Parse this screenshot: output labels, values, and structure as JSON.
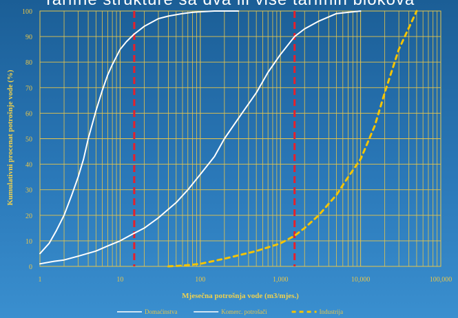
{
  "page_title": "Tarifne strukture sa dva ili više tarifnih blokova",
  "chart_data": {
    "type": "line",
    "title": "Tarifne strukture sa dva ili više tarifnih blokova",
    "xlabel": "Mjesečna potrošnja vode (m3/mjes.)",
    "ylabel": "Kumulativni procenat potrošnje vode (%)",
    "x_scale": "log",
    "xlim": [
      1,
      100000
    ],
    "ylim": [
      0,
      100
    ],
    "x_ticks": [
      1,
      10,
      100,
      1000,
      10000,
      100000
    ],
    "x_tick_labels": [
      "1",
      "10",
      "100",
      "1,000",
      "10,000",
      "100,000"
    ],
    "y_ticks": [
      0,
      10,
      20,
      30,
      40,
      50,
      60,
      70,
      80,
      90,
      100
    ],
    "grid": true,
    "legend_position": "bottom",
    "reference_lines_x": [
      15,
      1500
    ],
    "reference_line_color": "#e8202a",
    "series": [
      {
        "name": "Domaćinstva",
        "color": "#ffffff",
        "style": "solid",
        "x": [
          1,
          1.3,
          1.6,
          2,
          2.5,
          3,
          3.5,
          4,
          5,
          6,
          7,
          8,
          10,
          12,
          15,
          20,
          30,
          40,
          60,
          80,
          100,
          150,
          200,
          300
        ],
        "y": [
          5,
          9,
          14,
          20,
          28,
          35,
          42,
          50,
          61,
          69,
          75,
          79,
          85,
          88,
          91,
          94,
          97,
          98,
          99,
          99.5,
          99.7,
          100,
          100,
          100
        ]
      },
      {
        "name": "Komerc. potrošači",
        "color": "#ffffff",
        "style": "solid",
        "x": [
          1,
          1.5,
          2,
          3,
          5,
          7,
          10,
          15,
          20,
          30,
          50,
          70,
          100,
          150,
          200,
          300,
          500,
          700,
          1000,
          1500,
          2000,
          3000,
          5000,
          7000,
          10000
        ],
        "y": [
          1,
          2,
          2.5,
          4,
          6,
          8,
          10,
          13,
          15,
          19,
          25,
          30,
          36,
          43,
          50,
          58,
          68,
          76,
          83,
          90,
          93,
          96,
          99,
          99.5,
          100
        ]
      },
      {
        "name": "Industrija",
        "color": "#f5c400",
        "style": "dashed",
        "x": [
          40,
          60,
          100,
          200,
          500,
          1000,
          1500,
          2000,
          3000,
          5000,
          7000,
          10000,
          15000,
          20000,
          30000,
          50000
        ],
        "y": [
          0,
          0.3,
          1,
          3,
          6,
          9,
          12,
          15,
          20,
          28,
          35,
          42,
          55,
          68,
          85,
          100
        ]
      }
    ]
  }
}
